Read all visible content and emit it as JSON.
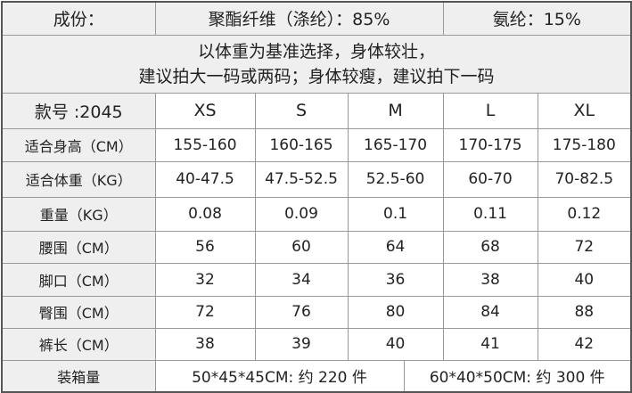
{
  "composition": {
    "label": "成份：",
    "polyester": "聚酯纤维（涤纶）：85%",
    "spandex": "氨纶：15%"
  },
  "advice": {
    "line1": "以体重为基准选择，身体较壮，",
    "line2": "建议拍大一码或两码；身体较瘦，建议拍下一码"
  },
  "header": {
    "style_no": "款号 :2045",
    "sizes": [
      "XS",
      "S",
      "M",
      "L",
      "XL"
    ]
  },
  "rows": [
    {
      "label": "适合身高（CM）",
      "values": [
        "155-160",
        "160-165",
        "165-170",
        "170-175",
        "175-180"
      ]
    },
    {
      "label": "适合体重（KG）",
      "values": [
        "40-47.5",
        "47.5-52.5",
        "52.5-60",
        "60-70",
        "70-82.5"
      ]
    },
    {
      "label": "重量（KG）",
      "values": [
        "0.08",
        "0.09",
        "0.1",
        "0.11",
        "0.12"
      ]
    },
    {
      "label": "腰围（CM）",
      "values": [
        "56",
        "60",
        "64",
        "68",
        "72"
      ]
    },
    {
      "label": "脚口（CM）",
      "values": [
        "32",
        "34",
        "36",
        "38",
        "40"
      ]
    },
    {
      "label": "臀围（CM）",
      "values": [
        "72",
        "76",
        "80",
        "84",
        "88"
      ]
    },
    {
      "label": "裤长（CM）",
      "values": [
        "38",
        "39",
        "40",
        "41",
        "42"
      ]
    }
  ],
  "packing": {
    "label": "装箱量",
    "box1": "50*45*45CM: 约 220 件",
    "box2": "60*40*50CM: 约 300 件"
  }
}
